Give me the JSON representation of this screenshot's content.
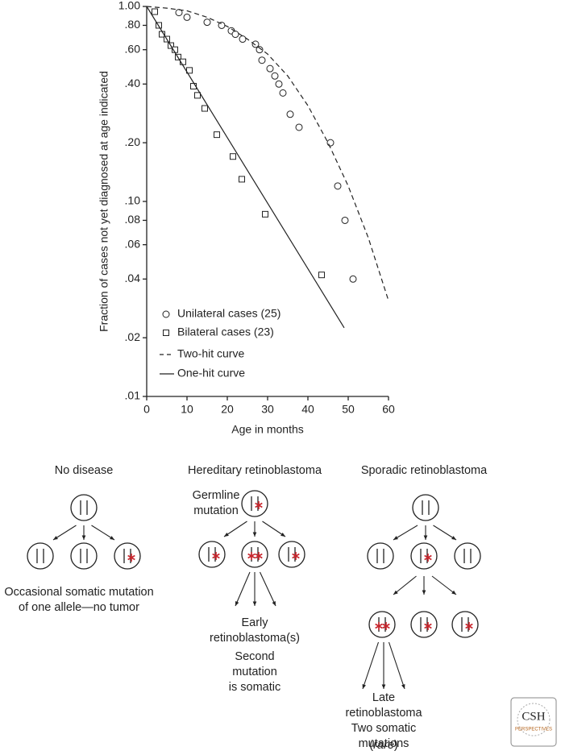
{
  "chart_data": {
    "type": "scatter",
    "log_y": true,
    "xlabel": "Age in months",
    "ylabel": "Fraction of cases not yet diagnosed at age indicated",
    "xlim": [
      0,
      60
    ],
    "xticks": [
      0,
      10,
      20,
      30,
      40,
      50,
      60
    ],
    "ylim": [
      0.01,
      1
    ],
    "yticks": [
      {
        "value": 1,
        "label": "1.00"
      },
      {
        "value": 0.8,
        "label": ".80"
      },
      {
        "value": 0.6,
        "label": ".60"
      },
      {
        "value": 0.4,
        "label": ".40"
      },
      {
        "value": 0.2,
        "label": ".20"
      },
      {
        "value": 0.1,
        "label": ".10"
      },
      {
        "value": 0.08,
        "label": ".08"
      },
      {
        "value": 0.06,
        "label": ".06"
      },
      {
        "value": 0.04,
        "label": ".04"
      },
      {
        "value": 0.02,
        "label": ".02"
      },
      {
        "value": 0.01,
        "label": ".01"
      }
    ],
    "series": [
      {
        "name": "Unilateral cases (25)",
        "marker": "circle",
        "color": "#222222",
        "x": [
          8,
          10,
          15,
          18.6,
          21,
          22,
          23.8,
          27,
          28,
          28.6,
          30.6,
          31.8,
          32.8,
          33.8,
          35.6,
          37.8,
          45.6,
          47.4,
          49.2,
          51.2
        ],
        "values": [
          0.93,
          0.88,
          0.83,
          0.8,
          0.75,
          0.72,
          0.68,
          0.64,
          0.6,
          0.53,
          0.48,
          0.44,
          0.4,
          0.36,
          0.28,
          0.24,
          0.2,
          0.12,
          0.08,
          0.04
        ]
      },
      {
        "name": "Bilateral cases (23)",
        "marker": "square",
        "color": "#222222",
        "x": [
          2,
          3,
          3.8,
          5,
          6,
          7,
          7.8,
          9,
          10.6,
          11.6,
          12.6,
          14.4,
          17.4,
          21.4,
          23.6,
          29.4,
          43.4
        ],
        "values": [
          0.94,
          0.8,
          0.72,
          0.68,
          0.63,
          0.6,
          0.55,
          0.52,
          0.47,
          0.39,
          0.35,
          0.3,
          0.22,
          0.17,
          0.13,
          0.086,
          0.042
        ]
      },
      {
        "name": "Two-hit curve",
        "marker": "line",
        "dash": true,
        "color": "#222222",
        "x": [
          0,
          5,
          10,
          15,
          20,
          25,
          30,
          35,
          40,
          45,
          50,
          55,
          60
        ],
        "values": [
          1,
          0.98,
          0.95,
          0.88,
          0.79,
          0.68,
          0.57,
          0.44,
          0.31,
          0.2,
          0.12,
          0.065,
          0.031
        ]
      },
      {
        "name": "One-hit curve",
        "marker": "line",
        "dash": false,
        "color": "#222222",
        "x": [
          0,
          49
        ],
        "values": [
          1,
          0.0225
        ]
      }
    ]
  },
  "diagram": {
    "panels": [
      {
        "title": "No disease",
        "notes": [
          [
            "Occasional somatic mutation",
            "of one allele—no tumor"
          ]
        ]
      },
      {
        "title": "Hereditary retinoblastoma",
        "label": [
          "Germline",
          "mutation"
        ],
        "notes": [
          [
            "Early",
            "retinoblastoma(s)"
          ],
          [
            "Second",
            "mutation",
            "is somatic"
          ]
        ]
      },
      {
        "title": "Sporadic retinoblastoma",
        "notes": [
          [
            "Late",
            "retinoblastoma"
          ],
          [
            "Two somatic",
            "mutations"
          ]
        ],
        "rare": [
          "(",
          "rare",
          ")"
        ]
      }
    ],
    "logo": [
      "CSH",
      "PERSPECTIVES"
    ]
  }
}
